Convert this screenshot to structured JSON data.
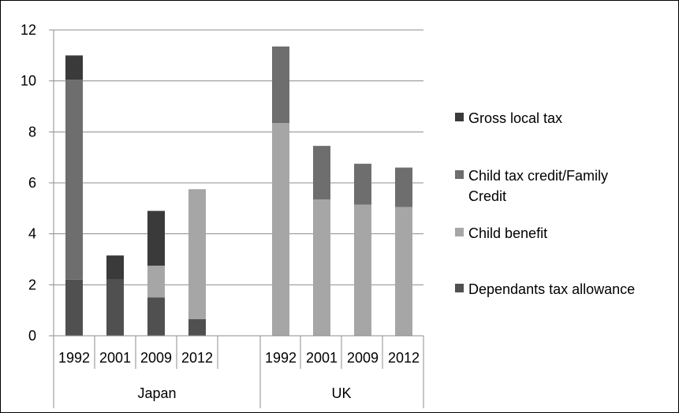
{
  "chart_data": {
    "type": "bar",
    "stacked": true,
    "ylim": [
      0,
      12
    ],
    "yticks": [
      0,
      2,
      4,
      6,
      8,
      10,
      12
    ],
    "grid": true,
    "legend_position": "right",
    "groups": [
      {
        "label": "Japan",
        "categories": [
          "1992",
          "2001",
          "2009",
          "2012"
        ]
      },
      {
        "label": "UK",
        "categories": [
          "1992",
          "2001",
          "2009",
          "2012"
        ]
      }
    ],
    "series": [
      {
        "name": "Dependants tax allowance",
        "color": "#505050",
        "values": [
          2.2,
          2.2,
          1.5,
          0.65,
          0,
          0,
          0,
          0
        ]
      },
      {
        "name": "Child benefit",
        "color": "#a6a6a6",
        "values": [
          0,
          0,
          1.25,
          5.1,
          8.35,
          5.35,
          5.15,
          5.05
        ]
      },
      {
        "name": "Child tax credit/Family Credit",
        "color": "#6e6e6e",
        "values": [
          7.85,
          0,
          0,
          0,
          3.0,
          2.1,
          1.6,
          1.55
        ]
      },
      {
        "name": "Gross local tax",
        "color": "#3a3a3a",
        "values": [
          0.95,
          0.95,
          2.15,
          0,
          0,
          0,
          0,
          0
        ]
      }
    ],
    "legend_order": [
      {
        "label": "Gross local tax",
        "color": "#3a3a3a"
      },
      {
        "label": "Child tax credit/Family\nCredit",
        "color": "#6e6e6e"
      },
      {
        "label": "Child benefit",
        "color": "#a6a6a6"
      },
      {
        "label": "Dependants tax allowance",
        "color": "#505050"
      }
    ]
  }
}
